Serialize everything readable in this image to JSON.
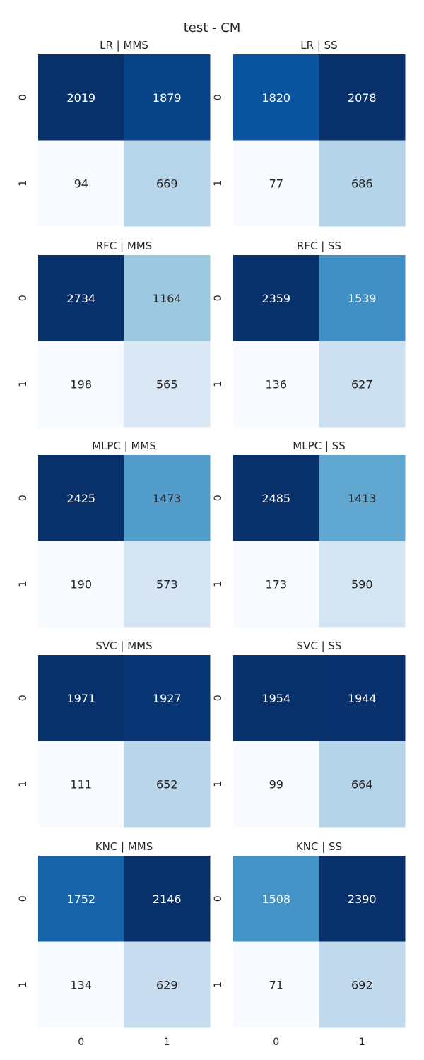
{
  "title": "test - CM",
  "chart_data": [
    {
      "type": "heatmap",
      "title": "LR | MMS",
      "x_tick_labels": [
        "0",
        "1"
      ],
      "y_tick_labels": [
        "0",
        "1"
      ],
      "values": [
        [
          2019,
          1879
        ],
        [
          94,
          669
        ]
      ]
    },
    {
      "type": "heatmap",
      "title": "LR | SS",
      "x_tick_labels": [
        "0",
        "1"
      ],
      "y_tick_labels": [
        "0",
        "1"
      ],
      "values": [
        [
          1820,
          2078
        ],
        [
          77,
          686
        ]
      ]
    },
    {
      "type": "heatmap",
      "title": "RFC | MMS",
      "x_tick_labels": [
        "0",
        "1"
      ],
      "y_tick_labels": [
        "0",
        "1"
      ],
      "values": [
        [
          2734,
          1164
        ],
        [
          198,
          565
        ]
      ]
    },
    {
      "type": "heatmap",
      "title": "RFC | SS",
      "x_tick_labels": [
        "0",
        "1"
      ],
      "y_tick_labels": [
        "0",
        "1"
      ],
      "values": [
        [
          2359,
          1539
        ],
        [
          136,
          627
        ]
      ]
    },
    {
      "type": "heatmap",
      "title": "MLPC | MMS",
      "x_tick_labels": [
        "0",
        "1"
      ],
      "y_tick_labels": [
        "0",
        "1"
      ],
      "values": [
        [
          2425,
          1473
        ],
        [
          190,
          573
        ]
      ]
    },
    {
      "type": "heatmap",
      "title": "MLPC | SS",
      "x_tick_labels": [
        "0",
        "1"
      ],
      "y_tick_labels": [
        "0",
        "1"
      ],
      "values": [
        [
          2485,
          1413
        ],
        [
          173,
          590
        ]
      ]
    },
    {
      "type": "heatmap",
      "title": "SVC | MMS",
      "x_tick_labels": [
        "0",
        "1"
      ],
      "y_tick_labels": [
        "0",
        "1"
      ],
      "values": [
        [
          1971,
          1927
        ],
        [
          111,
          652
        ]
      ]
    },
    {
      "type": "heatmap",
      "title": "SVC | SS",
      "x_tick_labels": [
        "0",
        "1"
      ],
      "y_tick_labels": [
        "0",
        "1"
      ],
      "values": [
        [
          1954,
          1944
        ],
        [
          99,
          664
        ]
      ]
    },
    {
      "type": "heatmap",
      "title": "KNC | MMS",
      "x_tick_labels": [
        "0",
        "1"
      ],
      "y_tick_labels": [
        "0",
        "1"
      ],
      "values": [
        [
          1752,
          2146
        ],
        [
          134,
          629
        ]
      ]
    },
    {
      "type": "heatmap",
      "title": "KNC | SS",
      "x_tick_labels": [
        "0",
        "1"
      ],
      "y_tick_labels": [
        "0",
        "1"
      ],
      "values": [
        [
          1508,
          2390
        ],
        [
          71,
          692
        ]
      ]
    }
  ],
  "colormap": "Blues",
  "colors": {
    "cmap_low": "#f7fbff",
    "cmap_high": "#08306b",
    "text_dark": "#262626",
    "text_light": "#ffffff"
  }
}
